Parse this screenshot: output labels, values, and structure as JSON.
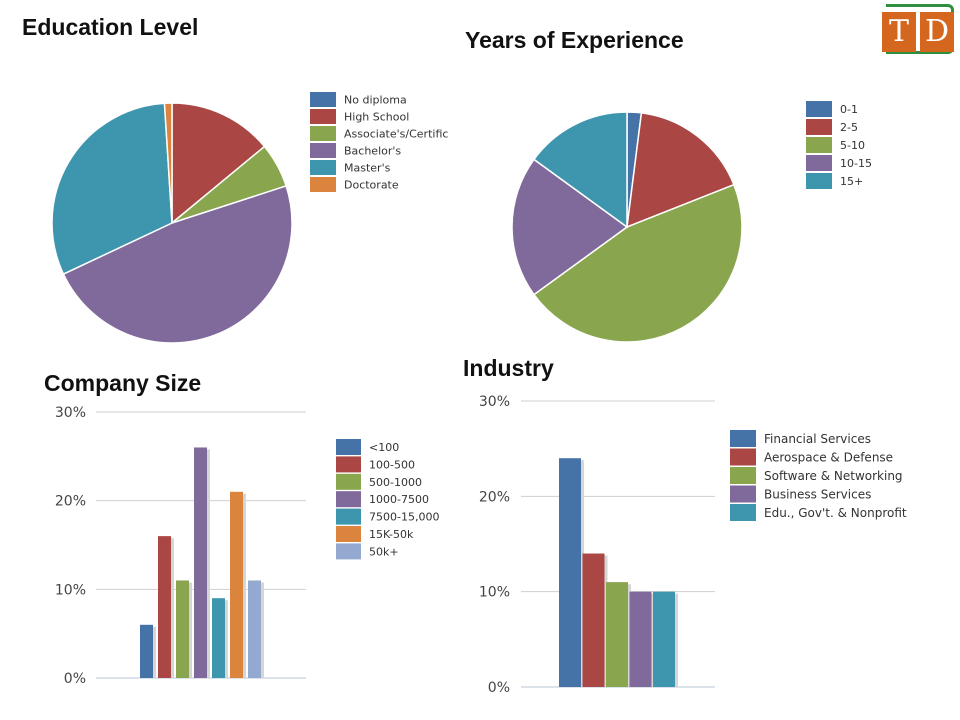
{
  "logo": {
    "letters": [
      "T",
      "D"
    ]
  },
  "chart_data": [
    {
      "type": "pie",
      "title": "Education Level",
      "legend_position": "right",
      "categories": [
        "No diploma",
        "High School",
        "Associate's/Certific",
        "Bachelor's",
        "Master's",
        "Doctorate"
      ],
      "values": [
        0,
        14,
        6,
        48,
        31,
        1
      ],
      "colors": [
        "#4572a7",
        "#aa4643",
        "#89a54e",
        "#80699b",
        "#3d96ae",
        "#db843d"
      ]
    },
    {
      "type": "pie",
      "title": "Years of Experience",
      "legend_position": "right",
      "categories": [
        "0-1",
        "2-5",
        "5-10",
        "10-15",
        "15+"
      ],
      "values": [
        2,
        17,
        46,
        20,
        15
      ],
      "colors": [
        "#4572a7",
        "#aa4643",
        "#89a54e",
        "#80699b",
        "#3d96ae"
      ]
    },
    {
      "type": "bar",
      "title": "Company Size",
      "legend_position": "right",
      "categories": [
        "<100",
        "100-500",
        "500-1000",
        "1000-7500",
        "7500-15,000",
        "15K-50k",
        "50k+"
      ],
      "values": [
        6,
        16,
        11,
        26,
        9,
        21,
        11
      ],
      "colors": [
        "#4572a7",
        "#aa4643",
        "#89a54e",
        "#80699b",
        "#3d96ae",
        "#db843d",
        "#93a9cf"
      ],
      "y_ticks": [
        "0%",
        "10%",
        "20%",
        "30%"
      ],
      "ylim": [
        0,
        30
      ],
      "grid": true
    },
    {
      "type": "bar",
      "title": "Industry",
      "legend_position": "right",
      "categories": [
        "Financial Services",
        "Aerospace & Defense",
        "Software & Networking",
        "Business Services",
        "Edu., Gov't. & Nonprofit"
      ],
      "values": [
        24,
        14,
        11,
        10,
        10
      ],
      "colors": [
        "#4572a7",
        "#aa4643",
        "#89a54e",
        "#80699b",
        "#3d96ae"
      ],
      "y_ticks": [
        "0%",
        "10%",
        "20%",
        "30%"
      ],
      "ylim": [
        0,
        30
      ],
      "grid": true
    }
  ]
}
